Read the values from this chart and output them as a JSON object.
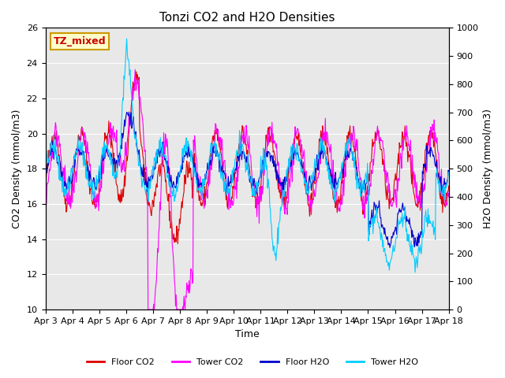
{
  "title": "Tonzi CO2 and H2O Densities",
  "xlabel": "Time",
  "ylabel_left": "CO2 Density (mmol/m3)",
  "ylabel_right": "H2O Density (mmol/m3)",
  "annotation_text": "TZ_mixed",
  "annotation_color": "#cc0000",
  "annotation_bg": "#ffffcc",
  "annotation_border": "#cc9900",
  "x_tick_labels": [
    "Apr 3",
    "Apr 4",
    "Apr 5",
    "Apr 6",
    "Apr 7",
    "Apr 8",
    "Apr 9",
    "Apr 10",
    "Apr 11",
    "Apr 12",
    "Apr 13",
    "Apr 14",
    "Apr 15",
    "Apr 16",
    "Apr 17",
    "Apr 18"
  ],
  "ylim_left": [
    10,
    26
  ],
  "ylim_right": [
    0,
    1000
  ],
  "yticks_left": [
    10,
    12,
    14,
    16,
    18,
    20,
    22,
    24,
    26
  ],
  "yticks_right": [
    0,
    100,
    200,
    300,
    400,
    500,
    600,
    700,
    800,
    900,
    1000
  ],
  "bg_color": "#e8e8e8",
  "fig_bg_color": "#ffffff",
  "grid_color": "#ffffff",
  "legend_entries": [
    "Floor CO2",
    "Tower CO2",
    "Floor H2O",
    "Tower H2O"
  ],
  "legend_colors": [
    "#dd0000",
    "#ff00ff",
    "#0000cc",
    "#00ccff"
  ],
  "line_colors": {
    "floor_co2": "#dd0000",
    "tower_co2": "#ff00ff",
    "floor_h2o": "#0000cc",
    "tower_h2o": "#00ccff"
  },
  "num_days": 15,
  "points_per_day": 48
}
